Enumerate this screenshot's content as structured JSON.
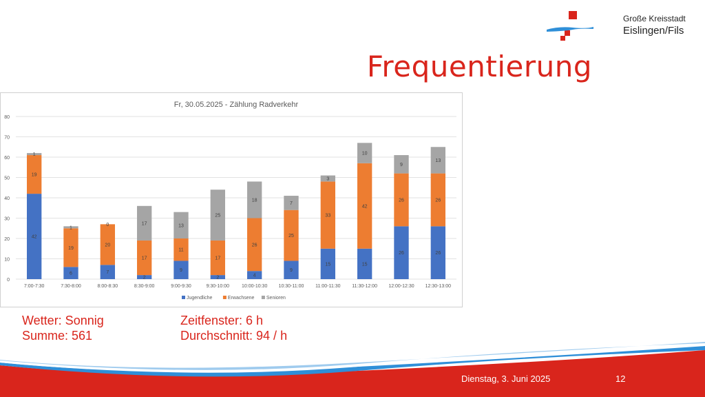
{
  "header": {
    "brand_line1": "Große Kreisstadt",
    "brand_line2": "Eislingen/Fils",
    "title": "Frequentierung"
  },
  "colors": {
    "accent_red": "#d9251c",
    "logo_blue": "#2f8fd8",
    "jugendliche": "#4472c4",
    "erwachsene": "#ed7d31",
    "senioren": "#a5a5a5"
  },
  "chart_data": {
    "type": "bar",
    "stacked": true,
    "title": "Fr, 30.05.2025 - Zählung Radverkehr",
    "xlabel": "",
    "ylabel": "",
    "ylim": [
      0,
      80
    ],
    "yticks": [
      0,
      10,
      20,
      30,
      40,
      50,
      60,
      70,
      80
    ],
    "grid": true,
    "legend_position": "bottom",
    "categories": [
      "7:00-7:30",
      "7:30-8:00",
      "8:00-8:30",
      "8:30-9:00",
      "9:00-9:30",
      "9:30-10:00",
      "10:00-10:30",
      "10:30-11:00",
      "11:00-11:30",
      "11:30-12:00",
      "12:00-12:30",
      "12:30-13:00"
    ],
    "series": [
      {
        "name": "Jugendliche",
        "color": "#4472c4",
        "values": [
          42,
          6,
          7,
          2,
          9,
          2,
          4,
          9,
          15,
          15,
          26,
          26
        ]
      },
      {
        "name": "Erwachsene",
        "color": "#ed7d31",
        "values": [
          19,
          19,
          20,
          17,
          11,
          17,
          26,
          25,
          33,
          42,
          26,
          26
        ]
      },
      {
        "name": "Senioren",
        "color": "#a5a5a5",
        "values": [
          1,
          1,
          0,
          17,
          13,
          25,
          18,
          7,
          3,
          10,
          9,
          13
        ]
      }
    ]
  },
  "info": {
    "wetter": "Wetter: Sonnig",
    "summe": "Summe: 561",
    "zeitfenster": "Zeitfenster: 6 h",
    "durchschnitt": "Durchschnitt: 94 / h"
  },
  "footer": {
    "date": "Dienstag, 3. Juni 2025",
    "page": "12"
  }
}
